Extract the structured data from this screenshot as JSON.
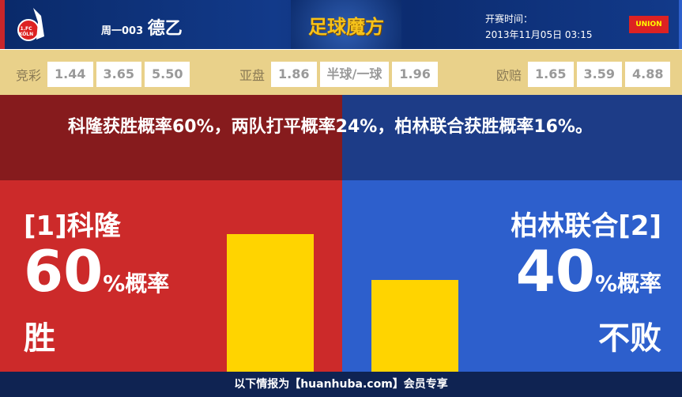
{
  "header": {
    "week_code": "周一003",
    "league": "德乙",
    "brand": "足球魔方",
    "kickoff_label": "开赛时间：",
    "kickoff_time": "2013年11月05日 03:15",
    "home_logo_text": "1.FC KÖLN",
    "away_logo_text": "UNION"
  },
  "odds": {
    "jingcai": {
      "label": "竞彩",
      "values": [
        "1.44",
        "3.65",
        "5.50"
      ]
    },
    "asian": {
      "label": "亚盘",
      "values": [
        "1.86",
        "半球/一球",
        "1.96"
      ]
    },
    "euro": {
      "label": "欧赔",
      "values": [
        "1.65",
        "3.59",
        "4.88"
      ]
    }
  },
  "summary": "科隆获胜概率60%，两队打平概率24%，柏林联合获胜概率16%。",
  "home": {
    "name": "[1]科隆",
    "pct": "60",
    "pct_suffix": "%概率",
    "result": "胜",
    "probability": 60
  },
  "away": {
    "name": "柏林联合[2]",
    "pct": "40",
    "pct_suffix": "%概率",
    "result": "不败",
    "probability": 40
  },
  "colors": {
    "home": "#cc2a2a",
    "away": "#2d5fcc",
    "bar": "#ffd400"
  },
  "footer": "以下情报为【huanhuba.com】会员专享"
}
